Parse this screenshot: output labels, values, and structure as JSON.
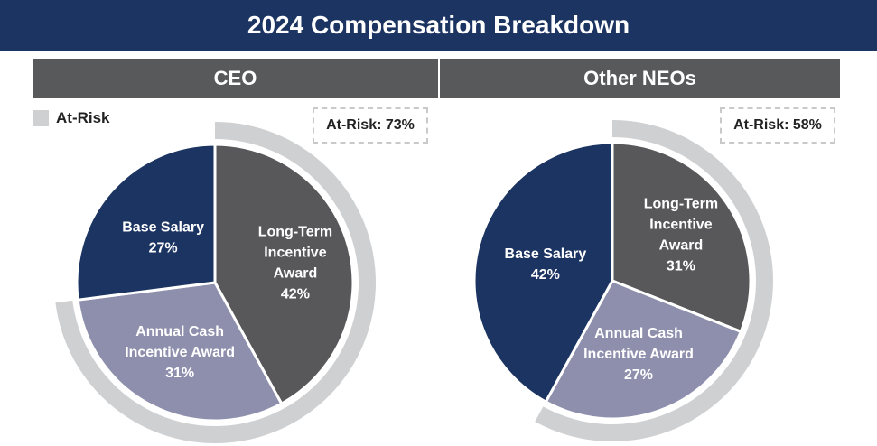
{
  "title": "2024 Compensation Breakdown",
  "legend": {
    "label": "At-Risk",
    "color": "#cfd0d2"
  },
  "chart_data": [
    {
      "type": "pie",
      "title": "CEO",
      "at_risk_label": "At-Risk: 73%",
      "at_risk_percent": 73,
      "slices": [
        {
          "name": "Long-Term Incentive Award",
          "label_lines": [
            "Long-Term",
            "Incentive",
            "Award"
          ],
          "value_label": "42%",
          "value": 42,
          "color": "#58585a",
          "at_risk": true
        },
        {
          "name": "Annual Cash Incentive Award",
          "label_lines": [
            "Annual Cash",
            "Incentive Award"
          ],
          "value_label": "31%",
          "value": 31,
          "color": "#8e8fad",
          "at_risk": true
        },
        {
          "name": "Base Salary",
          "label_lines": [
            "Base Salary"
          ],
          "value_label": "27%",
          "value": 27,
          "color": "#1c3461",
          "at_risk": false
        }
      ]
    },
    {
      "type": "pie",
      "title": "Other NEOs",
      "at_risk_label": "At-Risk: 58%",
      "at_risk_percent": 58,
      "slices": [
        {
          "name": "Long-Term Incentive Award",
          "label_lines": [
            "Long-Term",
            "Incentive",
            "Award"
          ],
          "value_label": "31%",
          "value": 31,
          "color": "#58585a",
          "at_risk": true
        },
        {
          "name": "Annual Cash Incentive Award",
          "label_lines": [
            "Annual Cash",
            "Incentive Award"
          ],
          "value_label": "27%",
          "value": 27,
          "color": "#8e8fad",
          "at_risk": true
        },
        {
          "name": "Base Salary",
          "label_lines": [
            "Base Salary"
          ],
          "value_label": "42%",
          "value": 42,
          "color": "#1c3461",
          "at_risk": false
        }
      ]
    }
  ]
}
